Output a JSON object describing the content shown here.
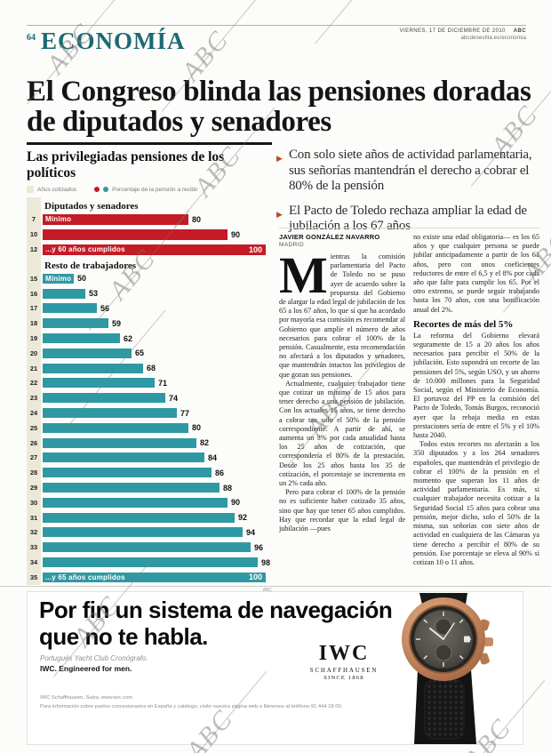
{
  "page": {
    "page_number": "64",
    "section": "ECONOMÍA",
    "dateline": "VIERNES, 17 DE DICIEMBRE DE 2010",
    "brand": "ABC",
    "site": "abcdesevilla.es/economia"
  },
  "headline": "El Congreso blinda las pensiones doradas de diputados y senadores",
  "bullets": [
    "Con solo siete años de actividad parlamentaria, sus señorías mantendrán el derecho a cobrar el 80% de la pensión",
    "El Pacto de Toledo rechaza ampliar la edad de jubilación a los 67 años"
  ],
  "article": {
    "author": "JAVIER GONZÁLEZ NAVARRO",
    "city": "MADRID",
    "dropcap": "M",
    "col1_paras": [
      "ientras la comisión parlamentaria del Pacto de Toledo no se puso ayer de acuerdo sobre la propuesta del Gobierno de alargar la edad legal de jubilación de los 65 a los 67 años, lo que sí que ha acordado por mayoría esa comisión es recomendar al Gobierno que amplíe el número de años necesarios para cobrar el 100% de la pensión. Casualmente, esta recomendación no afectará a los diputados y senadores, que mantendrán intactos los privilegios de que gozan sus pensiones.",
      "Actualmente, cualquier trabajador tiene que cotizar un mínimo de 15 años para tener derecho a una pensión de jubilación. Con los actuales 15 años, se tiene derecho a cobrar tan solo el 50% de la pensión correspondiente. A partir de ahí, se aumenta un 3% por cada anualidad hasta los 25 años de cotización, que correspondería el 80% de la prestación. Desde los 25 años hasta los 35 de cotización, el porcentaje se incrementa en un 2% cada año.",
      "Pero para cobrar el 100% de la pensión no es suficiente haber cotizado 35 años, sino que hay que tener 65 años cumplidos. Hay que recordar que la edad legal de jubilación —pues"
    ],
    "col2_blocks": [
      {
        "type": "p",
        "text": "no existe una edad obligatoria— es los 65 años y que cualquier persona se puede jubilar anticipadamente a partir de los 61 años, pero con unos coeficientes reductores de entre el 6,5 y el 8% por cada año que falte para cumplir los 65. Por el otro extremo, se puede seguir trabajando hasta los 70 años, con una bonificación anual del 2%."
      },
      {
        "type": "subhead",
        "text": "Recortes de más del 5%"
      },
      {
        "type": "p",
        "text": "La reforma del Gobierno elevará seguramente de 15 a 20 años los años necesarios para percibir el 50% de la jubilación. Esto supondrá un recorte de las pensiones del 5%, según USO, y un ahorro de 10.000 millones para la Seguridad Social, según el Ministerio de Economía. El portavoz del PP en la comisión del Pacto de Toledo, Tomás Burgos, reconoció ayer que la rebaja media en estas prestaciones sería de entre el 5% y el 10% hasta 2040."
      },
      {
        "type": "p",
        "text": "Todos estos recortes no afectarán a los 350 diputados y a los 264 senadores españoles, que mantendrán el privilegio de cobrar el 100% de la pensión en el momento que superan los 11 años de actividad parlamentaria. Es más, si cualquier trabajador necesita cotizar a la Seguridad Social 15 años para cobrar una pensión, mejor dicho, solo el 50% de la misma, sus señorías con siete años de actividad en cualquiera de las Cámaras ya tiene derecho a percibir el 80% de su pensión. Ese porcentaje se eleva al 90% si cotizan 10 o 11 años."
      }
    ]
  },
  "chart_data": {
    "type": "bar",
    "title": "Las privilegiadas pensiones de los políticos",
    "xlabel": "Años cotizados",
    "ylabel": "Porcentaje de la pensión a recibir",
    "xlim": [
      42,
      100
    ],
    "legend": {
      "years_label": "Años cotizados",
      "pct_label": "Porcentaje de la pensión a recibir"
    },
    "credit": "ABC",
    "sections": [
      {
        "label": "Diputados y senadores",
        "color": "#c41b26",
        "rows": [
          {
            "years": "7",
            "label": "Mínimo",
            "value": 80
          },
          {
            "years": "10",
            "label": "",
            "value": 90
          },
          {
            "years": "12",
            "label": "...y 60 años cumplidos",
            "value": 100,
            "value_inside": true
          }
        ]
      },
      {
        "label": "Resto de trabajadores",
        "color": "#2f99a3",
        "rows": [
          {
            "years": "15",
            "label": "Mínimo",
            "value": 50
          },
          {
            "years": "16",
            "label": "",
            "value": 53
          },
          {
            "years": "17",
            "label": "",
            "value": 56
          },
          {
            "years": "18",
            "label": "",
            "value": 59
          },
          {
            "years": "19",
            "label": "",
            "value": 62
          },
          {
            "years": "20",
            "label": "",
            "value": 65
          },
          {
            "years": "21",
            "label": "",
            "value": 68
          },
          {
            "years": "22",
            "label": "",
            "value": 71
          },
          {
            "years": "23",
            "label": "",
            "value": 74
          },
          {
            "years": "24",
            "label": "",
            "value": 77
          },
          {
            "years": "25",
            "label": "",
            "value": 80
          },
          {
            "years": "26",
            "label": "",
            "value": 82
          },
          {
            "years": "27",
            "label": "",
            "value": 84
          },
          {
            "years": "28",
            "label": "",
            "value": 86
          },
          {
            "years": "29",
            "label": "",
            "value": 88
          },
          {
            "years": "30",
            "label": "",
            "value": 90
          },
          {
            "years": "31",
            "label": "",
            "value": 92
          },
          {
            "years": "32",
            "label": "",
            "value": 94
          },
          {
            "years": "33",
            "label": "",
            "value": 96
          },
          {
            "years": "34",
            "label": "",
            "value": 98
          },
          {
            "years": "35",
            "label": "...y 65 años cumplidos",
            "value": 100,
            "value_inside": true
          }
        ]
      }
    ]
  },
  "ad": {
    "headline_line1": "Por fin un sistema de navegación",
    "headline_line2": "que no te habla.",
    "product": "Portugués Yacht Club Cronógrafo.",
    "tagline": "IWC. Engineered for men.",
    "logo_name": "IWC",
    "logo_sub1": "SCHAFFHAUSEN",
    "logo_sub2": "SINCE 1868",
    "fineprint_line1": "IWC Schaffhausen, Suiza. www.iwc.com",
    "fineprint_line2": "Para información sobre puntos concesionarios en España y catálogo, visite nuestra página web o llámenos al teléfono 91 444 18 00."
  },
  "watermark_text": "ABC",
  "colors": {
    "masthead_teal": "#1c6a74",
    "accent_red": "#c41b26",
    "accent_teal": "#2f99a3",
    "beige": "#ece9d8",
    "bullet_arrow": "#b8501e"
  }
}
